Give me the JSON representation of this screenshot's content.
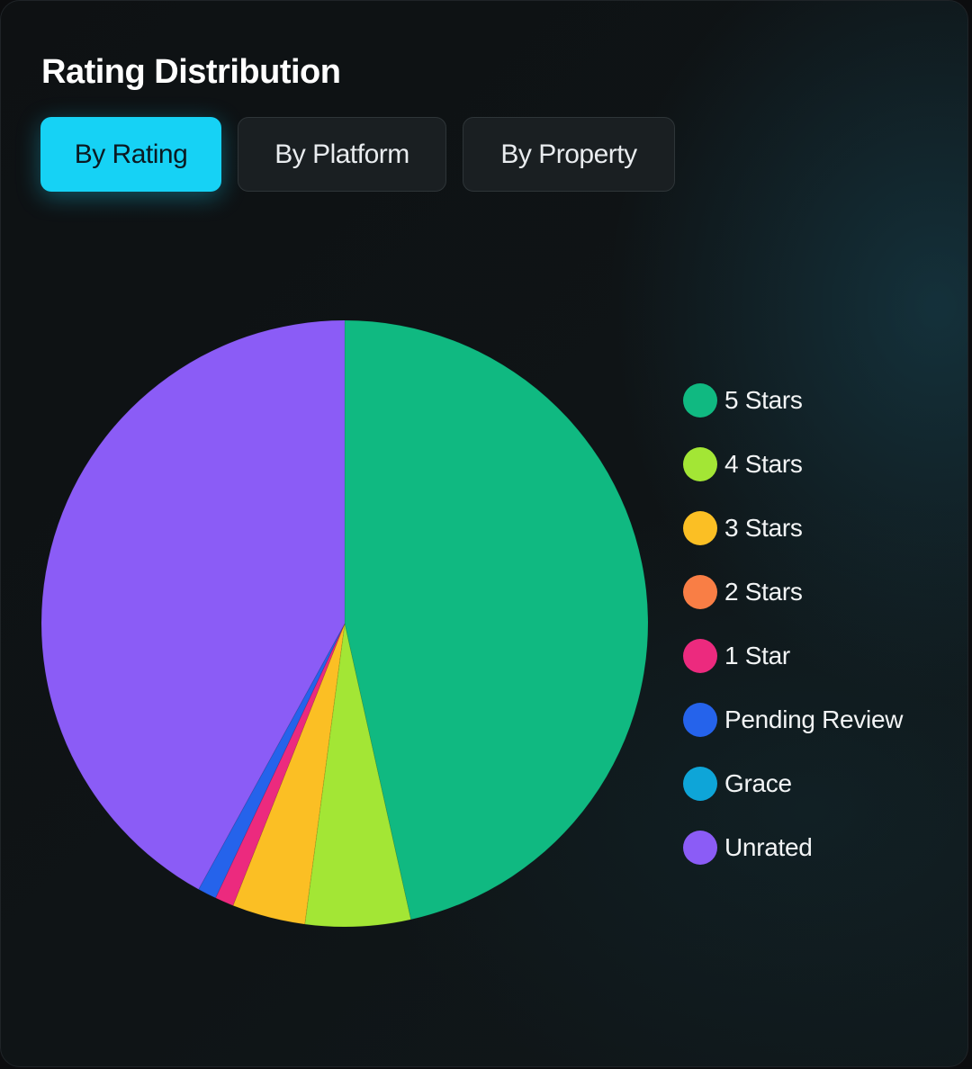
{
  "chart_data": {
    "type": "pie",
    "title": "Rating Distribution",
    "categories": [
      "5 Stars",
      "4 Stars",
      "3 Stars",
      "2 Stars",
      "1 Star",
      "Pending Review",
      "Grace",
      "Unrated"
    ],
    "values": [
      46.5,
      5.6,
      3.9,
      0.0,
      1.0,
      1.0,
      0.0,
      42.0
    ],
    "colors": [
      "#10b981",
      "#a3e635",
      "#fbbf24",
      "#f97e45",
      "#ec2a7e",
      "#2563eb",
      "#0ea5d8",
      "#8b5cf6"
    ],
    "legend_position": "right",
    "start_angle": "top, clockwise"
  },
  "tabs": [
    {
      "label": "By Rating",
      "active": true
    },
    {
      "label": "By Platform",
      "active": false
    },
    {
      "label": "By Property",
      "active": false
    }
  ],
  "colors": {
    "accent": "#16d2f5"
  }
}
